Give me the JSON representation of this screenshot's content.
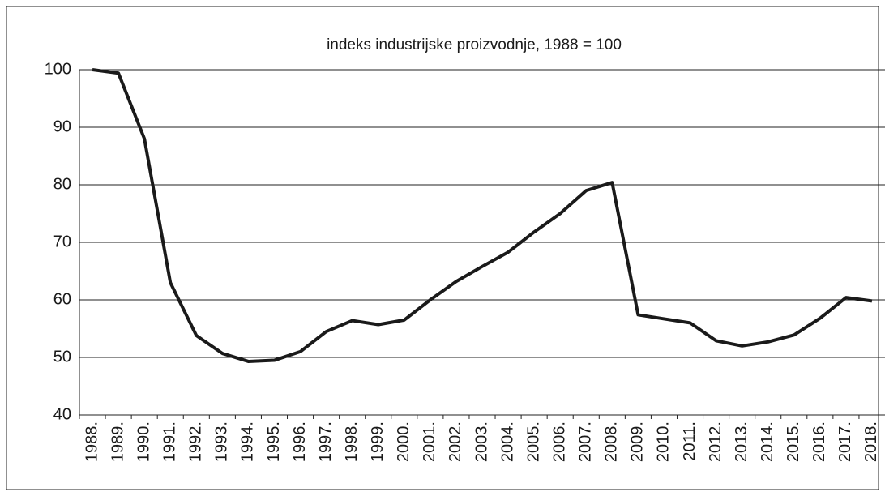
{
  "chart_data": {
    "type": "line",
    "title": "indeks industrijske proizvodnje,  1988 = 100",
    "categories": [
      "1988.",
      "1989.",
      "1990.",
      "1991.",
      "1992.",
      "1993.",
      "1994.",
      "1995.",
      "1996.",
      "1997.",
      "1998.",
      "1999.",
      "2000.",
      "2001.",
      "2002.",
      "2003.",
      "2004.",
      "2005.",
      "2006.",
      "2007.",
      "2008.",
      "2009.",
      "2010.",
      "2011.",
      "2012.",
      "2013.",
      "2014.",
      "2015.",
      "2016.",
      "2017.",
      "2018."
    ],
    "values": [
      100,
      99.4,
      88,
      63,
      53.8,
      50.7,
      49.3,
      49.5,
      51,
      54.5,
      56.4,
      55.7,
      56.5,
      60,
      63.2,
      65.8,
      68.3,
      71.8,
      75,
      79,
      80.4,
      57.4,
      56.7,
      56,
      52.9,
      52,
      52.7,
      53.9,
      56.8,
      60.4,
      59.8
    ],
    "color": "#1a1a1a",
    "ylim": [
      40,
      100
    ],
    "yticks": [
      40,
      50,
      60,
      70,
      80,
      90,
      100
    ],
    "grid": true
  }
}
